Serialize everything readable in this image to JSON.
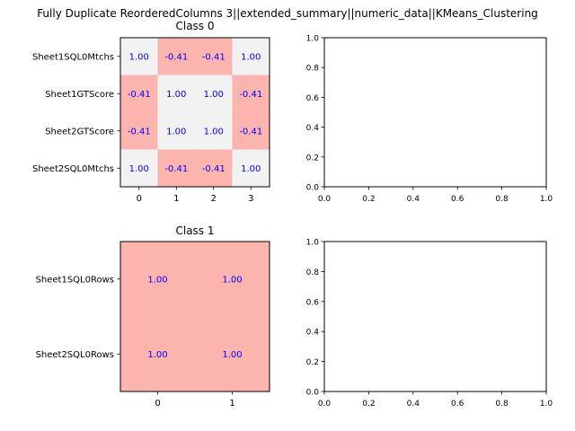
{
  "figure": {
    "suptitle": "Fully Duplicate ReorderedColumns 3||extended_summary||numeric_data||KMeans_Clustering"
  },
  "chart_data": [
    {
      "type": "heatmap",
      "title": "Class 0",
      "x_ticks": [
        "0",
        "1",
        "2",
        "3"
      ],
      "y_labels": [
        "Sheet1SQL0Mtchs",
        "Sheet1GTScore",
        "Sheet2GTScore",
        "Sheet2SQL0Mtchs"
      ],
      "values": [
        [
          1.0,
          -0.41,
          -0.41,
          1.0
        ],
        [
          -0.41,
          1.0,
          1.0,
          -0.41
        ],
        [
          -0.41,
          1.0,
          1.0,
          -0.41
        ],
        [
          1.0,
          -0.41,
          -0.41,
          1.0
        ]
      ],
      "value_labels": [
        [
          "1.00",
          "-0.41",
          "-0.41",
          "1.00"
        ],
        [
          "-0.41",
          "1.00",
          "1.00",
          "-0.41"
        ],
        [
          "-0.41",
          "1.00",
          "1.00",
          "-0.41"
        ],
        [
          "1.00",
          "-0.41",
          "-0.41",
          "1.00"
        ]
      ],
      "colors": {
        "negative": "#fbb4ae",
        "positive": "#f2f2f2",
        "label": "#0000ff"
      },
      "xlim": [
        -0.5,
        3.5
      ],
      "ylim": [
        -0.5,
        3.5
      ]
    },
    {
      "type": "line",
      "title": "",
      "series": [],
      "xlim": [
        0,
        1
      ],
      "ylim": [
        0,
        1
      ],
      "x_ticks": [
        "0.0",
        "0.2",
        "0.4",
        "0.6",
        "0.8",
        "1.0"
      ],
      "y_ticks": [
        "0.0",
        "0.2",
        "0.4",
        "0.6",
        "0.8",
        "1.0"
      ],
      "grid": false
    },
    {
      "type": "heatmap",
      "title": "Class 1",
      "x_ticks": [
        "0",
        "1"
      ],
      "y_labels": [
        "Sheet1SQL0Rows",
        "Sheet2SQL0Rows"
      ],
      "values": [
        [
          1.0,
          1.0
        ],
        [
          1.0,
          1.0
        ]
      ],
      "value_labels": [
        [
          "1.00",
          "1.00"
        ],
        [
          "1.00",
          "1.00"
        ]
      ],
      "colors": {
        "cell": "#fbb4ae",
        "label": "#0000ff"
      },
      "xlim": [
        -0.5,
        1.5
      ],
      "ylim": [
        -0.5,
        1.5
      ]
    },
    {
      "type": "line",
      "title": "",
      "series": [],
      "xlim": [
        0,
        1
      ],
      "ylim": [
        0,
        1
      ],
      "x_ticks": [
        "0.0",
        "0.2",
        "0.4",
        "0.6",
        "0.8",
        "1.0"
      ],
      "y_ticks": [
        "0.0",
        "0.2",
        "0.4",
        "0.6",
        "0.8",
        "1.0"
      ],
      "grid": false
    }
  ]
}
